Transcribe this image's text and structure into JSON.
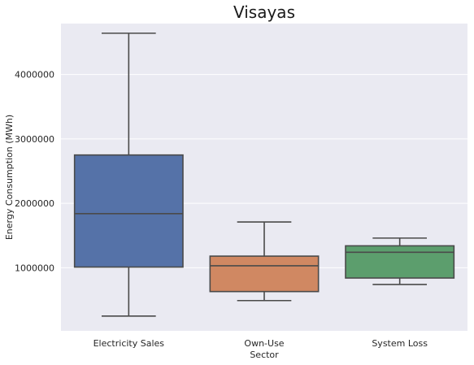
{
  "chart_data": {
    "type": "box",
    "title": "Visayas",
    "xlabel": "Sector",
    "ylabel": "Energy Consumption (MWh)",
    "ylim": [
      20000,
      4790000
    ],
    "yticks": [
      1000000,
      2000000,
      3000000,
      4000000
    ],
    "ytick_labels": [
      "1000000",
      "2000000",
      "3000000",
      "4000000"
    ],
    "grid": true,
    "categories": [
      "Electricity Sales",
      "Own-Use",
      "System Loss"
    ],
    "boxes": [
      {
        "category": "Electricity Sales",
        "whisker_low": 250000,
        "q1": 1010000,
        "median": 1840000,
        "q3": 2750000,
        "whisker_high": 4640000,
        "color": "#5572a8"
      },
      {
        "category": "Own-Use",
        "whisker_low": 490000,
        "q1": 630000,
        "median": 1030000,
        "q3": 1180000,
        "whisker_high": 1710000,
        "color": "#d08862"
      },
      {
        "category": "System Loss",
        "whisker_low": 740000,
        "q1": 840000,
        "median": 1240000,
        "q3": 1340000,
        "whisker_high": 1460000,
        "color": "#5c9e6d"
      }
    ],
    "colors": {
      "background": "#eaeaf2",
      "grid": "#ffffff",
      "line": "#4a4a4a"
    }
  }
}
